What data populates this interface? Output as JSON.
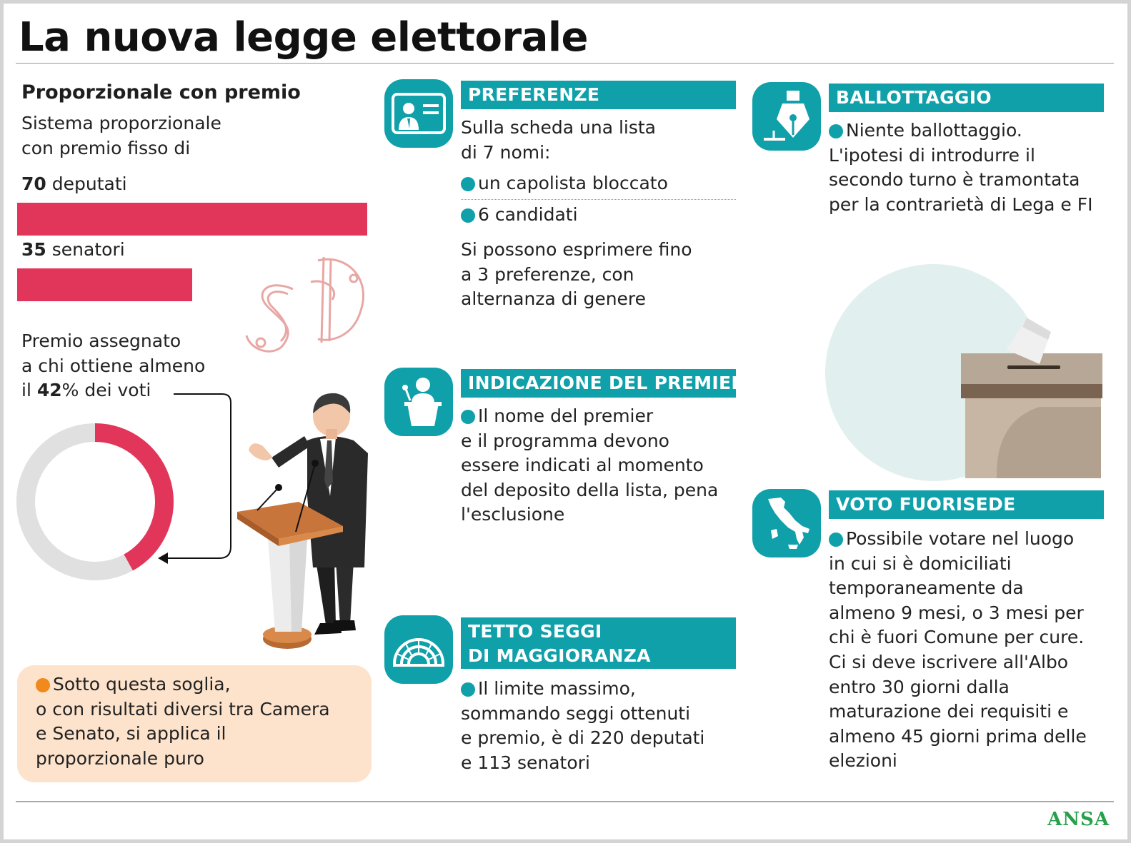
{
  "title": "La nuova legge elettorale",
  "left": {
    "heading": "Proporzionale con premio",
    "intro": [
      "Sistema proporzionale",
      "con premio fisso di"
    ],
    "deputies": {
      "number": "70",
      "label": " deputati",
      "value": 70
    },
    "senators": {
      "number": "35",
      "label": " senatori",
      "value": 35
    },
    "premio": {
      "line1": "Premio assegnato",
      "line2": "a chi ottiene almeno",
      "pre": "il ",
      "number": "42",
      "post": "% dei voti",
      "value": 42
    },
    "note": [
      "Sotto questa soglia,",
      "o con risultati diversi tra Camera",
      "e Senato, si applica il",
      "proporzionale puro"
    ]
  },
  "preferenze": {
    "heading": "PREFERENZE",
    "intro": [
      "Sulla scheda una lista",
      "di 7 nomi:"
    ],
    "bullets": [
      "un capolista bloccato",
      "6 candidati"
    ],
    "body": [
      "Si possono esprimere fino",
      "a 3 preferenze, con",
      "alternanza di genere"
    ]
  },
  "premier": {
    "heading": "INDICAZIONE DEL PREMIER",
    "body": [
      "Il nome del premier",
      "e il programma devono",
      "essere indicati al momento",
      "del deposito della lista, pena",
      "l'esclusione"
    ]
  },
  "tetto": {
    "heading": [
      "TETTO SEGGI",
      "DI MAGGIORANZA"
    ],
    "body": [
      "Il limite massimo,",
      "sommando seggi ottenuti",
      "e premio, è di 220 deputati",
      "e 113 senatori"
    ]
  },
  "ballottaggio": {
    "heading": "BALLOTTAGGIO",
    "body": [
      "Niente ballottaggio.",
      "L'ipotesi di introdurre il",
      "secondo turno è tramontata",
      "per la contrarietà di Lega e FI"
    ]
  },
  "fuorisede": {
    "heading": "VOTO FUORISEDE",
    "body": [
      "Possibile votare nel luogo",
      "in cui si è domiciliati",
      "temporaneamente da",
      "almeno 9 mesi, o 3 mesi per",
      "chi è fuori Comune per cure.",
      "Ci si deve iscrivere all'Albo",
      "entro 30 giorni dalla",
      "maturazione dei requisiti e",
      "almeno 45 giorni prima delle",
      "elezioni"
    ]
  },
  "footer": {
    "brand": "ANSA"
  },
  "colors": {
    "accent": "#10a0aa",
    "bar": "#e2355a",
    "donut_track": "#e0e0e0",
    "note_bg": "#fde3cc",
    "note_dot": "#f08a1c",
    "brand": "#27a04a"
  },
  "icons": [
    "id-card-icon",
    "podium-speaker-icon",
    "parliament-icon",
    "fountain-pen-icon",
    "italy-map-icon",
    "ballot-box-icon",
    "person-at-podium-illustration",
    "emblem-watermark"
  ]
}
